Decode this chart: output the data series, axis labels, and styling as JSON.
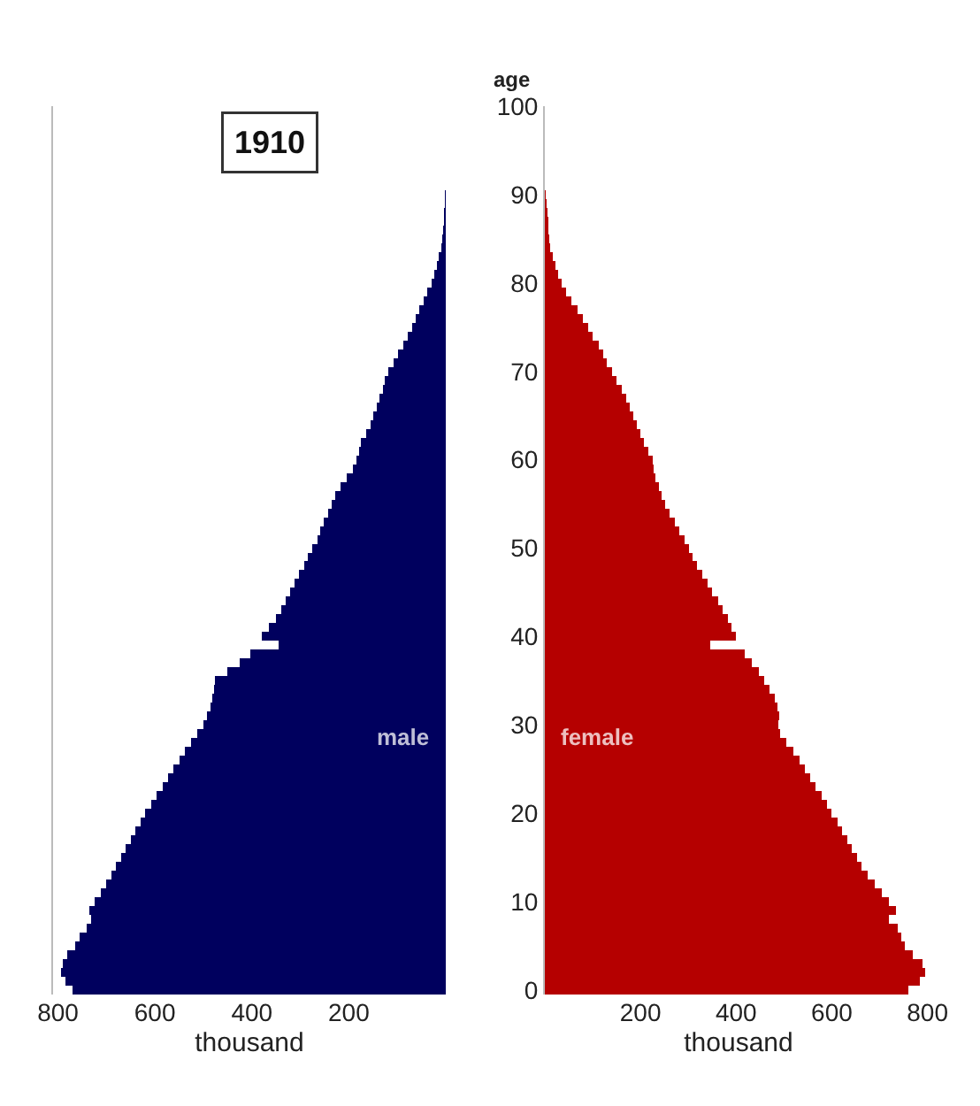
{
  "chart_data": [
    {
      "type": "bar",
      "title": "1910",
      "orientation": "horizontal",
      "xlabel": "thousand",
      "tick_labels": "x",
      "x": [
        0,
        1,
        2,
        3,
        4,
        5,
        6,
        7,
        8,
        9,
        10,
        11,
        12,
        13,
        14,
        15,
        16,
        17,
        18,
        19,
        20,
        21,
        22,
        23,
        24,
        25,
        26,
        27,
        28,
        29,
        30,
        31,
        32,
        33,
        34,
        35,
        36,
        37,
        38,
        39,
        40,
        41,
        42,
        43,
        44,
        45,
        46,
        47,
        48,
        49,
        50,
        51,
        52,
        53,
        54,
        55,
        56,
        57,
        58,
        59,
        60,
        61,
        62,
        63,
        64,
        65,
        66,
        67,
        68,
        69,
        70,
        71,
        72,
        73,
        74,
        75,
        76,
        77,
        78,
        79,
        80,
        81,
        82,
        83,
        84,
        85,
        86,
        87,
        88,
        89,
        90,
        91,
        92,
        93,
        94,
        95,
        96,
        97,
        98,
        99
      ],
      "xlim": [
        810,
        0
      ],
      "xticks": [
        800,
        600,
        400,
        200
      ],
      "ylim": [
        -0.5,
        100
      ],
      "yticks": [
        0,
        10,
        20,
        30,
        40,
        50,
        60,
        70,
        80,
        90,
        100
      ],
      "series": [
        {
          "name": "male",
          "color": "#00005e",
          "values": [
            770,
            785,
            793,
            790,
            780,
            765,
            755,
            740,
            732,
            735,
            725,
            712,
            700,
            690,
            681,
            670,
            660,
            650,
            640,
            630,
            620,
            608,
            596,
            584,
            572,
            562,
            550,
            538,
            526,
            512,
            500,
            492,
            486,
            482,
            478,
            476,
            450,
            425,
            404,
            345,
            380,
            365,
            350,
            340,
            330,
            322,
            312,
            302,
            292,
            285,
            275,
            265,
            259,
            252,
            243,
            236,
            228,
            218,
            205,
            192,
            184,
            178,
            175,
            165,
            155,
            150,
            142,
            136,
            130,
            125,
            118,
            108,
            98,
            88,
            78,
            70,
            62,
            55,
            46,
            38,
            30,
            24,
            18,
            14,
            10,
            8,
            6,
            4,
            3,
            2,
            1,
            0,
            0,
            0,
            0,
            0,
            0,
            0,
            0,
            0
          ]
        }
      ]
    },
    {
      "type": "bar",
      "orientation": "horizontal",
      "xlabel": "thousand",
      "ylabel": "age",
      "x": [
        0,
        1,
        2,
        3,
        4,
        5,
        6,
        7,
        8,
        9,
        10,
        11,
        12,
        13,
        14,
        15,
        16,
        17,
        18,
        19,
        20,
        21,
        22,
        23,
        24,
        25,
        26,
        27,
        28,
        29,
        30,
        31,
        32,
        33,
        34,
        35,
        36,
        37,
        38,
        39,
        40,
        41,
        42,
        43,
        44,
        45,
        46,
        47,
        48,
        49,
        50,
        51,
        52,
        53,
        54,
        55,
        56,
        57,
        58,
        59,
        60,
        61,
        62,
        63,
        64,
        65,
        66,
        67,
        68,
        69,
        70,
        71,
        72,
        73,
        74,
        75,
        76,
        77,
        78,
        79,
        80,
        81,
        82,
        83,
        84,
        85,
        86,
        87,
        88,
        89,
        90,
        91,
        92,
        93,
        94,
        95,
        96,
        97,
        98,
        99
      ],
      "xlim": [
        0,
        810
      ],
      "xticks": [
        200,
        400,
        600,
        800
      ],
      "ylim": [
        -0.5,
        100
      ],
      "yticks": [
        0,
        10,
        20,
        30,
        40,
        50,
        60,
        70,
        80,
        90,
        100
      ],
      "series": [
        {
          "name": "female",
          "color": "#b50000",
          "values": [
            760,
            785,
            796,
            790,
            770,
            752,
            745,
            738,
            720,
            735,
            720,
            705,
            690,
            675,
            662,
            652,
            642,
            632,
            622,
            612,
            600,
            590,
            578,
            566,
            554,
            544,
            532,
            520,
            505,
            491,
            488,
            490,
            487,
            480,
            470,
            458,
            448,
            432,
            418,
            345,
            400,
            390,
            382,
            372,
            362,
            350,
            340,
            330,
            318,
            308,
            302,
            292,
            282,
            272,
            260,
            252,
            245,
            238,
            232,
            228,
            225,
            216,
            208,
            200,
            192,
            185,
            178,
            170,
            160,
            150,
            141,
            130,
            122,
            112,
            100,
            91,
            80,
            68,
            56,
            45,
            36,
            28,
            22,
            16,
            12,
            9,
            8,
            7,
            5,
            3,
            2,
            0,
            0,
            0,
            0,
            0,
            0,
            0,
            0,
            0
          ]
        }
      ]
    }
  ]
}
